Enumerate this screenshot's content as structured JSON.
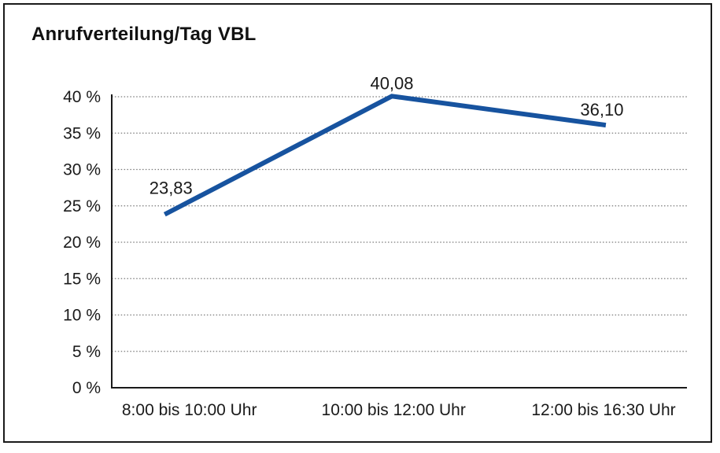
{
  "window": {
    "background": "#ffffff",
    "frame_border_color": "#1a1a1a"
  },
  "chart_data": {
    "type": "line",
    "title": "Anrufverteilung/Tag VBL",
    "categories": [
      "8:00 bis 10:00 Uhr",
      "10:00 bis 12:00 Uhr",
      "12:00 bis 16:30 Uhr"
    ],
    "series": [
      {
        "name": "Anrufverteilung/Tag VBL",
        "values": [
          23.83,
          40.08,
          36.1
        ],
        "value_labels": [
          "23,83",
          "40,08",
          "36,10"
        ]
      }
    ],
    "xlabel": "",
    "ylabel": "",
    "ylim": [
      0,
      40
    ],
    "y_tick_step": 5,
    "y_ticks": [
      {
        "value": 0,
        "label": "0 %"
      },
      {
        "value": 5,
        "label": "5 %"
      },
      {
        "value": 10,
        "label": "10 %"
      },
      {
        "value": 15,
        "label": "15 %"
      },
      {
        "value": 20,
        "label": "20 %"
      },
      {
        "value": 25,
        "label": "25 %"
      },
      {
        "value": 30,
        "label": "30 %"
      },
      {
        "value": 35,
        "label": "35 %"
      },
      {
        "value": 40,
        "label": "40 %"
      }
    ],
    "grid": {
      "horizontal": true,
      "style": "dotted"
    },
    "legend": "none",
    "markers": "none",
    "colors": {
      "line": "#17539f",
      "grid": "#7a7a7a",
      "axis": "#1a1a1a",
      "text": "#1a1a1a",
      "title": "#111111",
      "background": "#ffffff"
    }
  }
}
